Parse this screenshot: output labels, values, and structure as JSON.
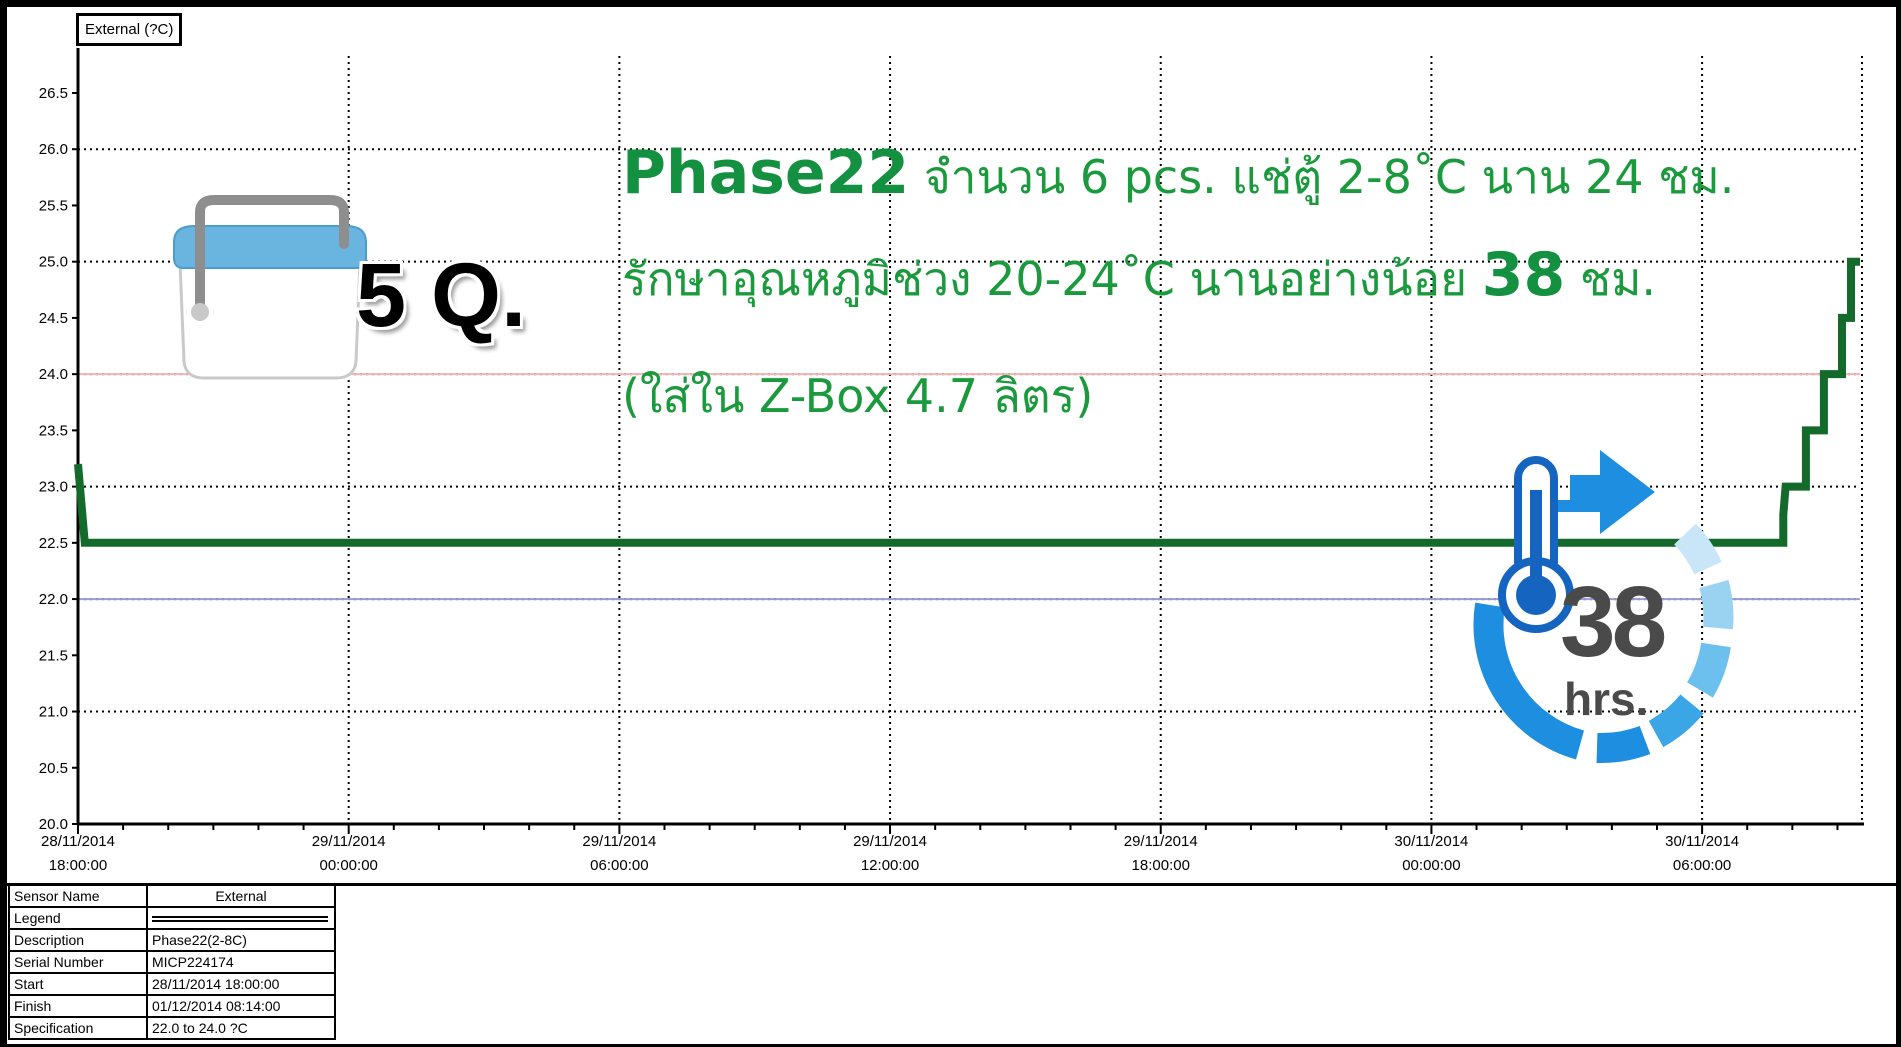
{
  "chart_data": {
    "type": "line",
    "series_title": "External (?C)",
    "y_ticks": [
      "26.5",
      "26.0",
      "25.5",
      "25.0",
      "24.5",
      "24.0",
      "23.5",
      "23.0",
      "22.5",
      "22.0",
      "21.5",
      "21.0",
      "20.5",
      "20.0"
    ],
    "ylim": [
      20.0,
      26.9
    ],
    "x_start_hours": 0,
    "x_ticks": [
      {
        "h": 0,
        "date": "28/11/2014",
        "time": "18:00:00"
      },
      {
        "h": 6,
        "date": "29/11/2014",
        "time": "00:00:00"
      },
      {
        "h": 12,
        "date": "29/11/2014",
        "time": "06:00:00"
      },
      {
        "h": 18,
        "date": "29/11/2014",
        "time": "12:00:00"
      },
      {
        "h": 24,
        "date": "29/11/2014",
        "time": "18:00:00"
      },
      {
        "h": 30,
        "date": "30/11/2014",
        "time": "00:00:00"
      },
      {
        "h": 36,
        "date": "30/11/2014",
        "time": "06:00:00"
      }
    ],
    "xlim_hours": [
      0,
      39.5
    ],
    "grid": true,
    "spec_limits": {
      "upper": 24.0,
      "lower": 22.0,
      "upper_color": "#f4b4b4",
      "lower_color": "#9a9ad8"
    },
    "series": [
      {
        "color": "#136a2a",
        "points": [
          [
            0,
            23.2
          ],
          [
            0.15,
            22.5
          ],
          [
            37.8,
            22.5
          ],
          [
            37.8,
            22.75
          ],
          [
            37.85,
            23.0
          ],
          [
            38.3,
            23.0
          ],
          [
            38.3,
            23.5
          ],
          [
            38.7,
            23.5
          ],
          [
            38.7,
            24.0
          ],
          [
            39.1,
            24.0
          ],
          [
            39.1,
            24.5
          ],
          [
            39.3,
            24.5
          ],
          [
            39.3,
            25.0
          ],
          [
            39.5,
            25.0
          ]
        ]
      }
    ]
  },
  "annotation": {
    "line1_bold": "Phase22",
    "line1_rest": " จำนวน 6 pcs. แช่ตู้ 2-8˚C นาน 24 ชม.",
    "line2_pre": "รักษาอุณหภูมิช่วง 20-24˚C นานอย่างน้อย ",
    "line2_bold": "38",
    "line2_post": " ชม.",
    "line3": "(ใส่ใน Z-Box 4.7 ลิตร)",
    "quantity": "5 Q.",
    "badge_number": "38",
    "badge_unit": "hrs."
  },
  "info": [
    {
      "k": "Sensor Name",
      "v": "External"
    },
    {
      "k": "Legend",
      "v": ""
    },
    {
      "k": "Description",
      "v": "Phase22(2-8C)"
    },
    {
      "k": "Serial Number",
      "v": "MICP224174"
    },
    {
      "k": "Start",
      "v": "28/11/2014  18:00:00"
    },
    {
      "k": "Finish",
      "v": "01/12/2014  08:14:00"
    },
    {
      "k": "Specification",
      "v": "22.0 to 24.0 ?C"
    }
  ],
  "colors": {
    "series": "#136a2a",
    "annotation": "#1a9a3c",
    "badge_blue": "#1e8fe0",
    "cooler_lid": "#6ab4e0"
  }
}
